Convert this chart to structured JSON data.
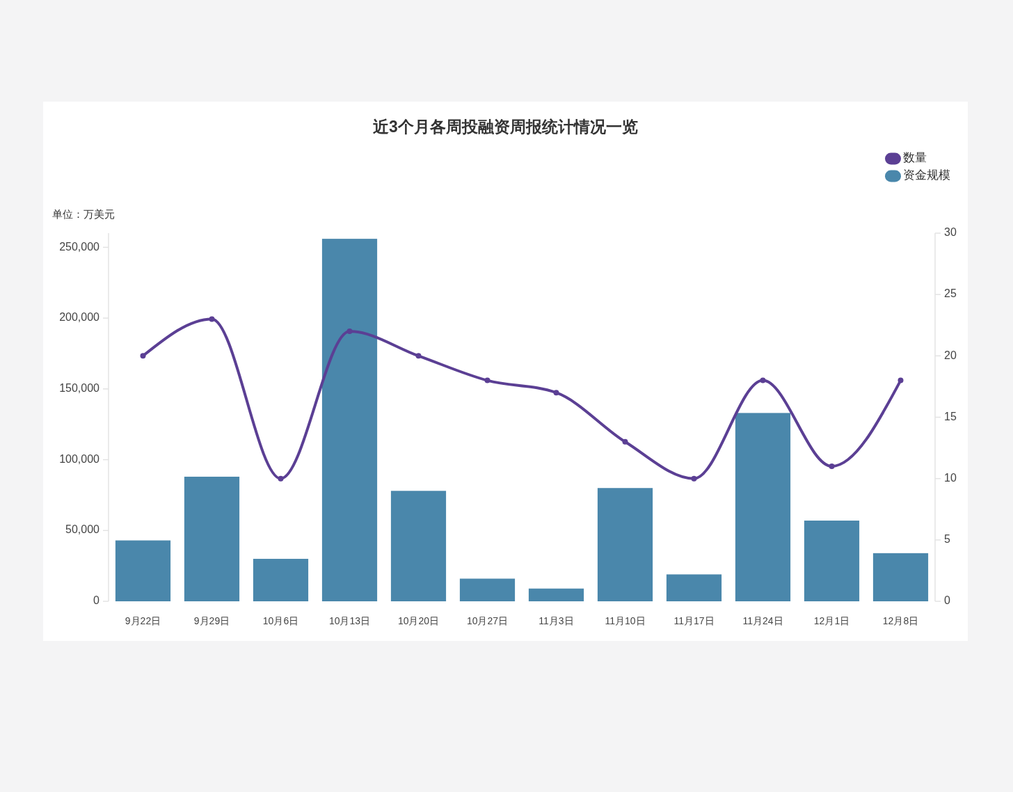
{
  "chart_data": {
    "type": "bar",
    "title": "近3个月各周投融资周报统计情况一览",
    "ylabel": "单位：万美元",
    "categories": [
      "9月22日",
      "9月29日",
      "10月6日",
      "10月13日",
      "10月20日",
      "10月27日",
      "11月3日",
      "11月10日",
      "11月17日",
      "11月24日",
      "12月1日",
      "12月8日"
    ],
    "series": [
      {
        "name": "数量",
        "type": "line",
        "axis": "y2",
        "color": "#5b3f94",
        "values": [
          20,
          23,
          10,
          22,
          20,
          18,
          17,
          13,
          10,
          18,
          11,
          18
        ]
      },
      {
        "name": "资金规模",
        "type": "bar",
        "color": "#4a87ab",
        "values": [
          43000,
          88000,
          30000,
          256000,
          78000,
          16000,
          9000,
          80000,
          19000,
          133000,
          57000,
          34000
        ]
      }
    ],
    "ylim": [
      0,
      260000
    ],
    "yticks": [
      0,
      {
        "value": 50000,
        "label": "50,000"
      },
      {
        "value": 100000,
        "label": "100,000"
      },
      {
        "value": 150000,
        "label": "150,000"
      },
      {
        "value": 200000,
        "label": "200,000"
      },
      {
        "value": 250000,
        "label": "250,000"
      }
    ],
    "y2lim": [
      0,
      30
    ],
    "y2ticks": [
      0,
      5,
      10,
      15,
      20,
      25,
      30
    ],
    "legend": "top right",
    "marker": "circle"
  }
}
